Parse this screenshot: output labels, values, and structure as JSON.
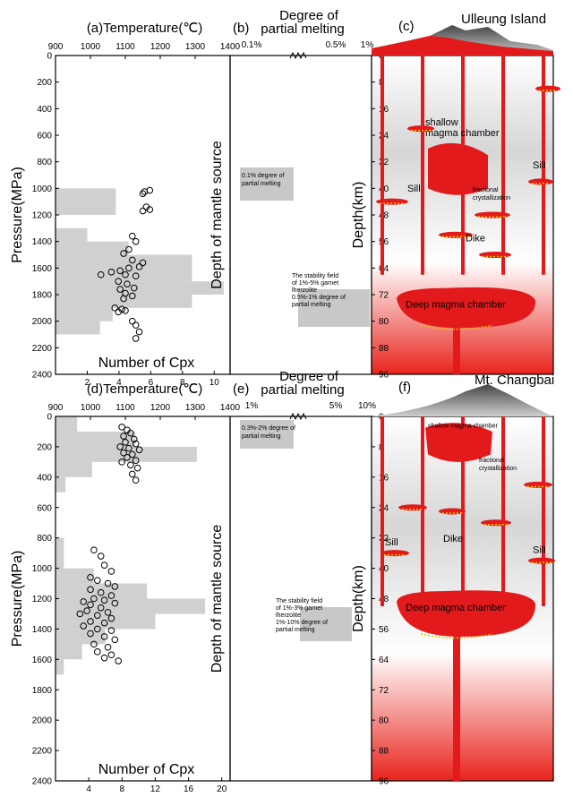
{
  "panels": [
    {
      "id": "top",
      "temp_title": "(a)Temperature(℃)",
      "melt_title_1": "Degree of",
      "melt_title_2": "partial melting",
      "melt_panel_label": "(b)",
      "section_panel_label": "(c)",
      "location": "Ulleung Island",
      "pressure_label": "Pressure(MPa)",
      "mantle_label": "Depth of mantle source",
      "depth_label": "Depth(km)",
      "count_label": "Number of Cpx",
      "temp_ticks": [
        "900",
        "1000",
        "1100",
        "1200",
        "1300",
        "1400"
      ],
      "melt_ticks": [
        "0.1%",
        "0.5%",
        "1%"
      ],
      "pressure_ticks": [
        "0",
        "200",
        "400",
        "600",
        "800",
        "1000",
        "1200",
        "1400",
        "1600",
        "1800",
        "2000",
        "2200",
        "2400"
      ],
      "count_ticks": [
        "2",
        "4",
        "6",
        "8",
        "10"
      ],
      "depth_ticks": [
        "0",
        "8",
        "16",
        "24",
        "32",
        "40",
        "48",
        "56",
        "64",
        "72",
        "80",
        "88",
        "96"
      ],
      "box_upper": "0.1% degree of\npartial melting",
      "box_lower": "The stability field\nof 1%-5% garnet\nlherzolite\n\n0.5%-1% degree of\npartial melting",
      "labels": {
        "shallow": "shallow\nmagma chamber",
        "fractional": "fractional\ncrystallization",
        "sill_left": "Sill",
        "sill_right": "Sill",
        "dike": "Dike",
        "deep": "Deep magma chamber"
      }
    },
    {
      "id": "bottom",
      "temp_title": "(d)Temperature(℃)",
      "melt_title_1": "Degree of",
      "melt_title_2": "partial melting",
      "melt_panel_label": "(e)",
      "section_panel_label": "(f)",
      "location": "Mt. Changbai",
      "pressure_label": "Pressure(MPa)",
      "mantle_label": "Depth of mantle source",
      "depth_label": "Depth(km)",
      "count_label": "Number of Cpx",
      "temp_ticks": [
        "900",
        "1000",
        "1100",
        "1200",
        "1300",
        "1400"
      ],
      "melt_ticks": [
        "1%",
        "5%",
        "10%"
      ],
      "pressure_ticks": [
        "0",
        "200",
        "400",
        "600",
        "800",
        "1000",
        "1200",
        "1400",
        "1600",
        "1800",
        "2000",
        "2200",
        "2400"
      ],
      "count_ticks": [
        "4",
        "8",
        "12",
        "16",
        "20"
      ],
      "depth_ticks": [
        "0",
        "8",
        "16",
        "24",
        "32",
        "40",
        "48",
        "56",
        "64",
        "72",
        "80",
        "88",
        "96"
      ],
      "box_upper": "0.3%-2% degree of\npartial melting",
      "box_lower": "The stability field\nof 1%-3% garnet\nlherzolite\n\n1%-10% degree of\npartial melting",
      "labels": {
        "shallow": "shallow magma chamber",
        "fractional": "fractional\ncrystallization",
        "sill_left": "Sill",
        "sill_right": "Sill",
        "dike": "Dike",
        "deep": "Deep magma chamber"
      }
    }
  ],
  "chart_data": [
    {
      "type": "scatter",
      "panel": "a",
      "xlabel": "Temperature(℃)",
      "ylabel": "Pressure(MPa)",
      "xlim": [
        900,
        1400
      ],
      "ylim": [
        2400,
        0
      ],
      "points": [
        [
          1155,
          1025
        ],
        [
          1170,
          1015
        ],
        [
          1150,
          1040
        ],
        [
          1160,
          1140
        ],
        [
          1170,
          1160
        ],
        [
          1150,
          1170
        ],
        [
          1120,
          1360
        ],
        [
          1130,
          1400
        ],
        [
          1110,
          1460
        ],
        [
          1095,
          1490
        ],
        [
          1120,
          1540
        ],
        [
          1150,
          1560
        ],
        [
          1140,
          1590
        ],
        [
          1110,
          1600
        ],
        [
          1085,
          1620
        ],
        [
          1060,
          1630
        ],
        [
          1030,
          1650
        ],
        [
          1100,
          1650
        ],
        [
          1130,
          1660
        ],
        [
          1080,
          1700
        ],
        [
          1105,
          1720
        ],
        [
          1125,
          1750
        ],
        [
          1085,
          1760
        ],
        [
          1100,
          1790
        ],
        [
          1120,
          1810
        ],
        [
          1095,
          1830
        ],
        [
          1070,
          1900
        ],
        [
          1090,
          1910
        ],
        [
          1100,
          1920
        ],
        [
          1080,
          1930
        ],
        [
          1120,
          2000
        ],
        [
          1130,
          2030
        ],
        [
          1140,
          2080
        ],
        [
          1130,
          2130
        ]
      ]
    },
    {
      "type": "bar",
      "panel": "a",
      "orientation": "horizontal",
      "xlabel": "Number of Cpx",
      "xlim": [
        0,
        11
      ],
      "bins": [
        {
          "from": 1000,
          "to": 1100,
          "count": 3.8
        },
        {
          "from": 1100,
          "to": 1200,
          "count": 3.8
        },
        {
          "from": 1300,
          "to": 1400,
          "count": 2.0
        },
        {
          "from": 1400,
          "to": 1500,
          "count": 4.6
        },
        {
          "from": 1500,
          "to": 1600,
          "count": 8.6
        },
        {
          "from": 1600,
          "to": 1700,
          "count": 8.6
        },
        {
          "from": 1700,
          "to": 1800,
          "count": 10.6
        },
        {
          "from": 1800,
          "to": 1900,
          "count": 8.6
        },
        {
          "from": 1900,
          "to": 2000,
          "count": 3.6
        },
        {
          "from": 2000,
          "to": 2100,
          "count": 2.8
        }
      ]
    },
    {
      "type": "scatter",
      "panel": "d",
      "xlabel": "Temperature(℃)",
      "ylabel": "Pressure(MPa)",
      "xlim": [
        900,
        1400
      ],
      "ylim": [
        2400,
        0
      ],
      "points": [
        [
          1090,
          70
        ],
        [
          1105,
          90
        ],
        [
          1115,
          110
        ],
        [
          1095,
          130
        ],
        [
          1125,
          150
        ],
        [
          1100,
          170
        ],
        [
          1130,
          180
        ],
        [
          1085,
          200
        ],
        [
          1110,
          210
        ],
        [
          1140,
          220
        ],
        [
          1095,
          240
        ],
        [
          1120,
          250
        ],
        [
          1105,
          270
        ],
        [
          1130,
          290
        ],
        [
          1090,
          300
        ],
        [
          1115,
          320
        ],
        [
          1135,
          340
        ],
        [
          1120,
          380
        ],
        [
          1130,
          420
        ],
        [
          1010,
          880
        ],
        [
          1030,
          920
        ],
        [
          1040,
          980
        ],
        [
          1060,
          1020
        ],
        [
          1000,
          1060
        ],
        [
          1020,
          1080
        ],
        [
          1050,
          1100
        ],
        [
          1070,
          1120
        ],
        [
          1000,
          1140
        ],
        [
          1030,
          1160
        ],
        [
          1060,
          1180
        ],
        [
          1010,
          1200
        ],
        [
          1040,
          1210
        ],
        [
          980,
          1220
        ],
        [
          1070,
          1230
        ],
        [
          1000,
          1240
        ],
        [
          1030,
          1260
        ],
        [
          990,
          1280
        ],
        [
          1050,
          1290
        ],
        [
          970,
          1300
        ],
        [
          1020,
          1310
        ],
        [
          1060,
          1330
        ],
        [
          1000,
          1350
        ],
        [
          1040,
          1360
        ],
        [
          980,
          1380
        ],
        [
          1020,
          1400
        ],
        [
          1060,
          1410
        ],
        [
          1000,
          1430
        ],
        [
          1040,
          1450
        ],
        [
          1070,
          1470
        ],
        [
          1010,
          1500
        ],
        [
          1050,
          1520
        ],
        [
          1020,
          1550
        ],
        [
          1060,
          1570
        ],
        [
          1040,
          1590
        ],
        [
          1080,
          1610
        ]
      ]
    },
    {
      "type": "bar",
      "panel": "d",
      "orientation": "horizontal",
      "xlabel": "Number of Cpx",
      "xlim": [
        0,
        21
      ],
      "bins": [
        {
          "from": 0,
          "to": 100,
          "count": 2.6
        },
        {
          "from": 100,
          "to": 200,
          "count": 9.6
        },
        {
          "from": 200,
          "to": 300,
          "count": 17.0
        },
        {
          "from": 300,
          "to": 400,
          "count": 4.4
        },
        {
          "from": 400,
          "to": 500,
          "count": 1.2
        },
        {
          "from": 800,
          "to": 900,
          "count": 1.0
        },
        {
          "from": 900,
          "to": 1000,
          "count": 1.0
        },
        {
          "from": 1000,
          "to": 1100,
          "count": 4.6
        },
        {
          "from": 1100,
          "to": 1200,
          "count": 11.0
        },
        {
          "from": 1200,
          "to": 1300,
          "count": 18.0
        },
        {
          "from": 1300,
          "to": 1400,
          "count": 12.0
        },
        {
          "from": 1400,
          "to": 1500,
          "count": 6.0
        },
        {
          "from": 1500,
          "to": 1600,
          "count": 3.2
        },
        {
          "from": 1600,
          "to": 1700,
          "count": 1.0
        }
      ]
    }
  ],
  "colors": {
    "magma": "#e31a1c",
    "histogram": "#d0d0d0",
    "box": "#c8c8c8",
    "mountain": "#8a8a8a",
    "grad_top": "#ffffff",
    "grad_mid": "#d6d6d6",
    "grad_bottom": "#e8241c"
  }
}
